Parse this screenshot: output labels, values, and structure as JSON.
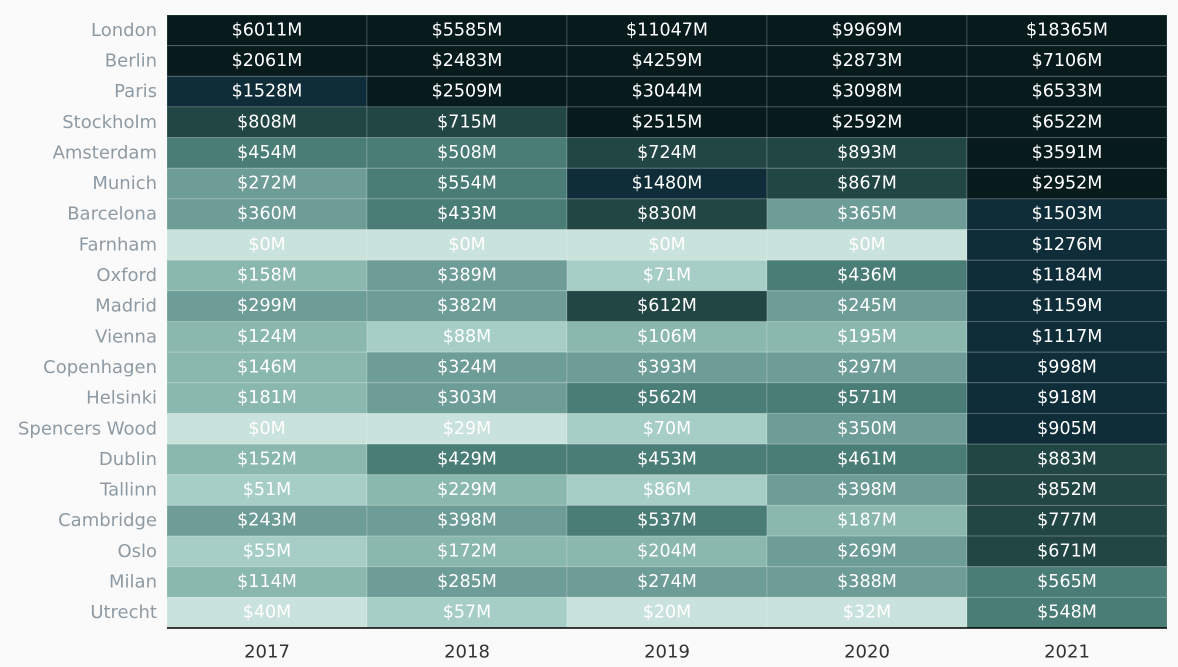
{
  "chart_data": {
    "type": "heatmap",
    "title": "",
    "xlabel": "",
    "ylabel": "",
    "value_prefix": "$",
    "value_suffix": "M",
    "columns": [
      "2017",
      "2018",
      "2019",
      "2020",
      "2021"
    ],
    "rows": [
      "London",
      "Berlin",
      "Paris",
      "Stockholm",
      "Amsterdam",
      "Munich",
      "Barcelona",
      "Farnham",
      "Oxford",
      "Madrid",
      "Vienna",
      "Copenhagen",
      "Helsinki",
      "Spencers Wood",
      "Dublin",
      "Tallinn",
      "Cambridge",
      "Oslo",
      "Milan",
      "Utrecht"
    ],
    "values": [
      [
        6011,
        5585,
        11047,
        9969,
        18365
      ],
      [
        2061,
        2483,
        4259,
        2873,
        7106
      ],
      [
        1528,
        2509,
        3044,
        3098,
        6533
      ],
      [
        808,
        715,
        2515,
        2592,
        6522
      ],
      [
        454,
        508,
        724,
        893,
        3591
      ],
      [
        272,
        554,
        1480,
        867,
        2952
      ],
      [
        360,
        433,
        830,
        365,
        1503
      ],
      [
        0,
        0,
        0,
        0,
        1276
      ],
      [
        158,
        389,
        71,
        436,
        1184
      ],
      [
        299,
        382,
        612,
        245,
        1159
      ],
      [
        124,
        88,
        106,
        195,
        1117
      ],
      [
        146,
        324,
        393,
        297,
        998
      ],
      [
        181,
        303,
        562,
        571,
        918
      ],
      [
        0,
        29,
        70,
        350,
        905
      ],
      [
        152,
        429,
        453,
        461,
        883
      ],
      [
        51,
        229,
        86,
        398,
        852
      ],
      [
        243,
        398,
        537,
        187,
        777
      ],
      [
        55,
        172,
        204,
        269,
        671
      ],
      [
        114,
        285,
        274,
        388,
        565
      ],
      [
        40,
        57,
        20,
        32,
        548
      ]
    ],
    "color_scale": [
      {
        "max": 40,
        "color": "#c9e2dc"
      },
      {
        "max": 100,
        "color": "#a6cec6"
      },
      {
        "max": 240,
        "color": "#8ab8ae"
      },
      {
        "max": 400,
        "color": "#6e9d97"
      },
      {
        "max": 600,
        "color": "#4b7d77"
      },
      {
        "max": 900,
        "color": "#224644"
      },
      {
        "max": 1600,
        "color": "#0e2d39"
      },
      {
        "max": 1000000,
        "color": "#071a1c"
      }
    ],
    "grid": false,
    "legend": "none"
  }
}
